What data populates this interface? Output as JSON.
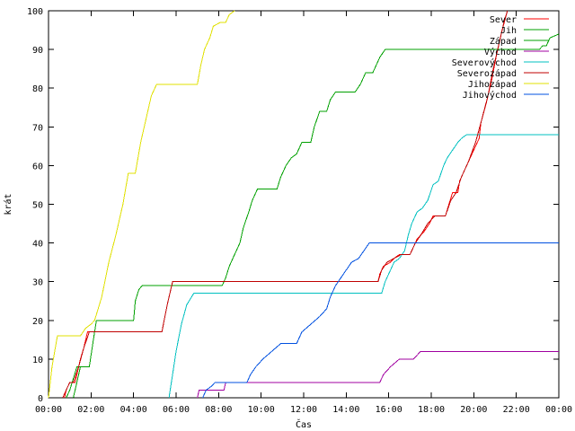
{
  "chart_data": {
    "type": "line",
    "title": "",
    "xlabel": "Čas",
    "ylabel": "krát",
    "xlim": [
      "00:00",
      "24:00"
    ],
    "ylim": [
      0,
      100
    ],
    "grid": false,
    "legend_position": "top-right",
    "x_tick_labels": [
      "00:00",
      "02:00",
      "04:00",
      "06:00",
      "08:00",
      "10:00",
      "12:00",
      "14:00",
      "16:00",
      "18:00",
      "20:00",
      "22:00",
      "00:00"
    ],
    "y_tick_labels": [
      "0",
      "10",
      "20",
      "30",
      "40",
      "50",
      "60",
      "70",
      "80",
      "90",
      "100"
    ],
    "series": [
      {
        "name": "Sever",
        "color": "#ff0000",
        "points": [
          [
            "00:45",
            0
          ],
          [
            "00:50",
            2
          ],
          [
            "01:00",
            4
          ],
          [
            "01:15",
            4
          ],
          [
            "01:20",
            6
          ],
          [
            "01:30",
            10
          ],
          [
            "01:40",
            13
          ],
          [
            "01:50",
            17
          ],
          [
            "05:20",
            17
          ],
          [
            "05:35",
            24
          ],
          [
            "05:50",
            30
          ],
          [
            "15:30",
            30
          ],
          [
            "15:35",
            32
          ],
          [
            "15:45",
            34
          ],
          [
            "16:05",
            35
          ],
          [
            "16:15",
            36
          ],
          [
            "16:30",
            37
          ],
          [
            "17:00",
            37
          ],
          [
            "17:10",
            39
          ],
          [
            "17:20",
            41
          ],
          [
            "17:40",
            43
          ],
          [
            "17:55",
            45
          ],
          [
            "18:05",
            47
          ],
          [
            "18:40",
            47
          ],
          [
            "18:50",
            50
          ],
          [
            "19:00",
            53
          ],
          [
            "19:15",
            53
          ],
          [
            "19:20",
            56
          ],
          [
            "19:40",
            60
          ],
          [
            "20:00",
            64
          ],
          [
            "20:15",
            67
          ],
          [
            "20:20",
            71
          ],
          [
            "20:35",
            76
          ],
          [
            "20:50",
            82
          ],
          [
            "21:05",
            89
          ],
          [
            "21:20",
            95
          ],
          [
            "21:35",
            100
          ]
        ]
      },
      {
        "name": "Jih",
        "color": "#00a000",
        "points": [
          [
            "01:10",
            0
          ],
          [
            "01:20",
            4
          ],
          [
            "01:30",
            8
          ],
          [
            "01:55",
            8
          ],
          [
            "02:05",
            14
          ],
          [
            "02:15",
            20
          ],
          [
            "04:00",
            20
          ],
          [
            "04:05",
            25
          ],
          [
            "04:15",
            28
          ],
          [
            "04:25",
            29
          ],
          [
            "06:15",
            29
          ],
          [
            "06:20",
            29
          ],
          [
            "08:10",
            29
          ],
          [
            "08:20",
            31
          ],
          [
            "08:30",
            34
          ],
          [
            "08:45",
            37
          ],
          [
            "09:00",
            40
          ],
          [
            "09:10",
            44
          ],
          [
            "09:25",
            48
          ],
          [
            "09:35",
            51
          ],
          [
            "09:50",
            54
          ],
          [
            "10:45",
            54
          ],
          [
            "10:55",
            57
          ],
          [
            "11:10",
            60
          ],
          [
            "11:25",
            62
          ],
          [
            "11:40",
            63
          ],
          [
            "11:55",
            66
          ],
          [
            "12:20",
            66
          ],
          [
            "12:30",
            70
          ],
          [
            "12:45",
            74
          ],
          [
            "13:05",
            74
          ],
          [
            "13:15",
            77
          ],
          [
            "13:30",
            79
          ],
          [
            "14:25",
            79
          ],
          [
            "14:40",
            81
          ],
          [
            "14:55",
            84
          ],
          [
            "15:15",
            84
          ],
          [
            "15:25",
            86
          ],
          [
            "15:35",
            88
          ],
          [
            "15:50",
            90
          ],
          [
            "23:05",
            90
          ],
          [
            "23:15",
            91
          ],
          [
            "23:25",
            91
          ],
          [
            "23:35",
            93
          ],
          [
            "24:00",
            94
          ]
        ]
      },
      {
        "name": "Západ",
        "color": "#00a000",
        "points": [
          [
            "00:50",
            0
          ],
          [
            "01:00",
            2
          ],
          [
            "01:20",
            8
          ],
          [
            "01:55",
            8
          ],
          [
            "02:05",
            14
          ],
          [
            "02:15",
            20
          ],
          [
            "04:00",
            20
          ],
          [
            "04:05",
            25
          ],
          [
            "04:15",
            28
          ],
          [
            "04:25",
            29
          ],
          [
            "06:15",
            29
          ],
          [
            "06:20",
            29
          ],
          [
            "08:10",
            29
          ],
          [
            "08:20",
            31
          ],
          [
            "08:30",
            34
          ],
          [
            "08:45",
            37
          ],
          [
            "09:00",
            40
          ],
          [
            "09:10",
            44
          ],
          [
            "09:25",
            48
          ],
          [
            "09:35",
            51
          ],
          [
            "09:50",
            54
          ],
          [
            "10:45",
            54
          ],
          [
            "10:55",
            57
          ],
          [
            "11:10",
            60
          ],
          [
            "11:25",
            62
          ],
          [
            "11:40",
            63
          ],
          [
            "11:55",
            66
          ],
          [
            "12:20",
            66
          ],
          [
            "12:30",
            70
          ],
          [
            "12:45",
            74
          ],
          [
            "13:05",
            74
          ],
          [
            "13:15",
            77
          ],
          [
            "13:30",
            79
          ],
          [
            "14:25",
            79
          ],
          [
            "14:40",
            81
          ],
          [
            "14:55",
            84
          ],
          [
            "15:15",
            84
          ],
          [
            "15:25",
            86
          ],
          [
            "15:35",
            88
          ],
          [
            "15:50",
            90
          ],
          [
            "23:05",
            90
          ],
          [
            "23:15",
            91
          ],
          [
            "23:25",
            91
          ],
          [
            "23:35",
            93
          ],
          [
            "24:00",
            94
          ]
        ]
      },
      {
        "name": "Východ",
        "color": "#a000a0",
        "points": [
          [
            "07:00",
            0
          ],
          [
            "07:05",
            2
          ],
          [
            "08:15",
            2
          ],
          [
            "08:20",
            4
          ],
          [
            "15:35",
            4
          ],
          [
            "15:45",
            6
          ],
          [
            "16:05",
            8
          ],
          [
            "16:30",
            10
          ],
          [
            "17:10",
            10
          ],
          [
            "17:20",
            11
          ],
          [
            "17:30",
            12
          ],
          [
            "24:00",
            12
          ]
        ]
      },
      {
        "name": "Severovýchod",
        "color": "#00c0c0",
        "points": [
          [
            "05:40",
            0
          ],
          [
            "05:50",
            6
          ],
          [
            "06:00",
            12
          ],
          [
            "06:15",
            19
          ],
          [
            "06:30",
            24
          ],
          [
            "06:50",
            27
          ],
          [
            "15:40",
            27
          ],
          [
            "15:50",
            30
          ],
          [
            "16:05",
            33
          ],
          [
            "16:15",
            35
          ],
          [
            "16:30",
            36
          ],
          [
            "16:45",
            38
          ],
          [
            "16:55",
            42
          ],
          [
            "17:05",
            45
          ],
          [
            "17:20",
            48
          ],
          [
            "17:35",
            49
          ],
          [
            "17:50",
            51
          ],
          [
            "18:05",
            55
          ],
          [
            "18:20",
            56
          ],
          [
            "18:35",
            60
          ],
          [
            "18:45",
            62
          ],
          [
            "19:00",
            64
          ],
          [
            "19:15",
            66
          ],
          [
            "19:25",
            67
          ],
          [
            "19:40",
            68
          ],
          [
            "24:00",
            68
          ]
        ]
      },
      {
        "name": "Severozápad",
        "color": "#c00000",
        "points": [
          [
            "00:40",
            0
          ],
          [
            "00:50",
            2
          ],
          [
            "01:00",
            4
          ],
          [
            "01:10",
            4
          ],
          [
            "01:25",
            8
          ],
          [
            "01:40",
            13
          ],
          [
            "01:55",
            17
          ],
          [
            "05:20",
            17
          ],
          [
            "05:35",
            24
          ],
          [
            "05:50",
            30
          ],
          [
            "15:30",
            30
          ],
          [
            "15:40",
            33
          ],
          [
            "15:55",
            35
          ],
          [
            "16:15",
            36
          ],
          [
            "16:35",
            37
          ],
          [
            "17:00",
            37
          ],
          [
            "17:15",
            40
          ],
          [
            "17:30",
            42
          ],
          [
            "17:50",
            45
          ],
          [
            "18:10",
            47
          ],
          [
            "18:40",
            47
          ],
          [
            "18:55",
            51
          ],
          [
            "19:10",
            53
          ],
          [
            "19:25",
            57
          ],
          [
            "19:45",
            61
          ],
          [
            "20:05",
            66
          ],
          [
            "20:20",
            71
          ],
          [
            "20:40",
            78
          ],
          [
            "20:55",
            85
          ],
          [
            "21:10",
            91
          ],
          [
            "21:25",
            97
          ],
          [
            "21:35",
            100
          ]
        ]
      },
      {
        "name": "Jihozápad",
        "color": "#e0e000",
        "points": [
          [
            "00:00",
            0
          ],
          [
            "00:10",
            8
          ],
          [
            "00:25",
            16
          ],
          [
            "01:30",
            16
          ],
          [
            "01:45",
            18
          ],
          [
            "02:00",
            19
          ],
          [
            "02:10",
            20
          ],
          [
            "02:30",
            26
          ],
          [
            "02:50",
            35
          ],
          [
            "03:10",
            42
          ],
          [
            "03:30",
            50
          ],
          [
            "03:45",
            58
          ],
          [
            "04:05",
            58
          ],
          [
            "04:20",
            66
          ],
          [
            "04:35",
            72
          ],
          [
            "04:50",
            78
          ],
          [
            "05:05",
            81
          ],
          [
            "07:00",
            81
          ],
          [
            "07:10",
            86
          ],
          [
            "07:20",
            90
          ],
          [
            "07:35",
            93
          ],
          [
            "07:45",
            96
          ],
          [
            "08:05",
            97
          ],
          [
            "08:20",
            97
          ],
          [
            "08:30",
            99
          ],
          [
            "08:45",
            100
          ]
        ]
      },
      {
        "name": "Jihovýchod",
        "color": "#0050e0",
        "points": [
          [
            "07:15",
            0
          ],
          [
            "07:25",
            2
          ],
          [
            "07:40",
            3
          ],
          [
            "07:50",
            4
          ],
          [
            "09:20",
            4
          ],
          [
            "09:30",
            6
          ],
          [
            "09:45",
            8
          ],
          [
            "10:05",
            10
          ],
          [
            "10:30",
            12
          ],
          [
            "10:55",
            14
          ],
          [
            "11:40",
            14
          ],
          [
            "11:55",
            17
          ],
          [
            "12:20",
            19
          ],
          [
            "12:45",
            21
          ],
          [
            "13:05",
            23
          ],
          [
            "13:15",
            26
          ],
          [
            "13:30",
            29
          ],
          [
            "13:45",
            31
          ],
          [
            "14:00",
            33
          ],
          [
            "14:15",
            35
          ],
          [
            "14:35",
            36
          ],
          [
            "14:50",
            38
          ],
          [
            "15:05",
            40
          ],
          [
            "24:00",
            40
          ]
        ]
      }
    ]
  }
}
